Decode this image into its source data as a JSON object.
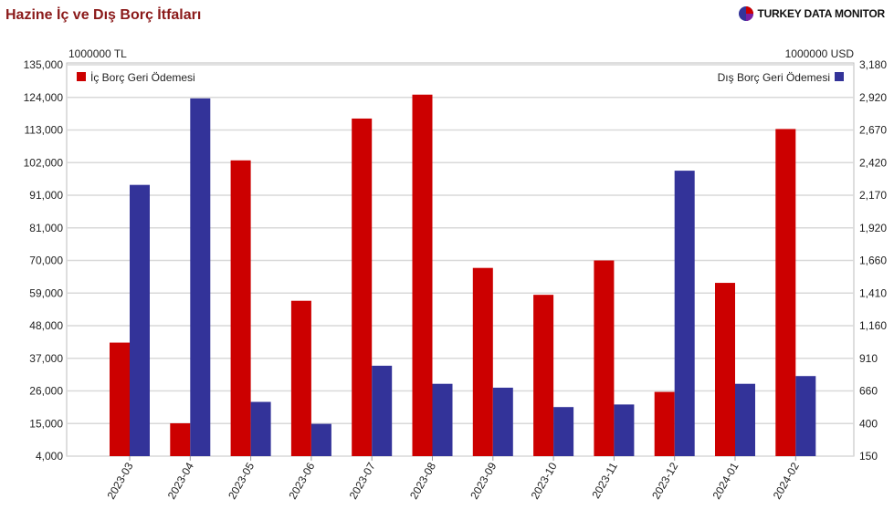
{
  "title": "Hazine İç ve Dış Borç İtfaları",
  "brand": {
    "name": "TURKEY DATA MONITOR",
    "logo_icon": "pie-logo-icon"
  },
  "colors": {
    "domestic": "#cc0000",
    "external": "#333399",
    "title": "#8b1a1a",
    "grid": "#d9d9d9"
  },
  "chart_data": {
    "type": "bar",
    "categories": [
      "2023-03",
      "2023-04",
      "2023-05",
      "2023-06",
      "2023-07",
      "2023-08",
      "2023-09",
      "2023-10",
      "2023-11",
      "2023-12",
      "2024-01",
      "2024-02"
    ],
    "series": [
      {
        "name": "İç Borç Geri Ödemesi",
        "axis": "left",
        "values": [
          42000,
          15000,
          103000,
          56000,
          117000,
          125000,
          67000,
          58000,
          69500,
          25500,
          62000,
          113500
        ]
      },
      {
        "name": "Dış Borç Geri Ödemesi",
        "axis": "right",
        "values": [
          2250,
          2920,
          570,
          400,
          850,
          710,
          680,
          530,
          550,
          2360,
          710,
          770
        ]
      }
    ],
    "left_axis": {
      "unit": "1000000 TL",
      "ylim": [
        4000,
        135000
      ],
      "ticks": [
        "135,000",
        "124,000",
        "113,000",
        "102,000",
        "91,000",
        "81,000",
        "70,000",
        "59,000",
        "48,000",
        "37,000",
        "26,000",
        "15,000",
        "4,000"
      ]
    },
    "right_axis": {
      "unit": "1000000 USD",
      "ylim": [
        150,
        3180
      ],
      "ticks": [
        "3,180",
        "2,920",
        "2,670",
        "2,420",
        "2,170",
        "1,920",
        "1,660",
        "1,410",
        "1,160",
        "910",
        "660",
        "400",
        "150"
      ]
    },
    "legend": {
      "left": "İç Borç Geri Ödemesi",
      "right": "Dış Borç Geri Ödemesi"
    },
    "grid": true
  }
}
